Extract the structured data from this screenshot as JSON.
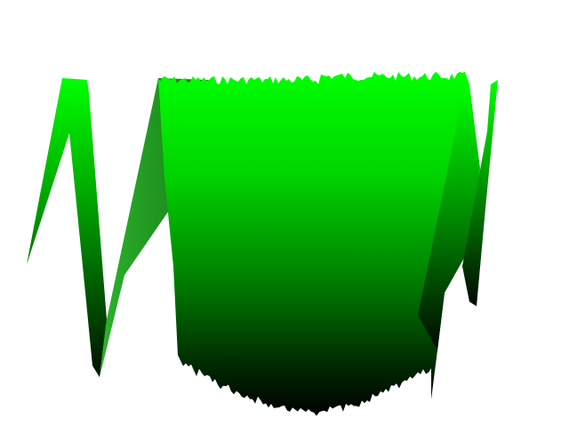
{
  "colors": {
    "background": "#ffffff",
    "surface_top": "#00ff00",
    "surface_mid": "#00a000",
    "surface_bottom": "#000000"
  }
}
